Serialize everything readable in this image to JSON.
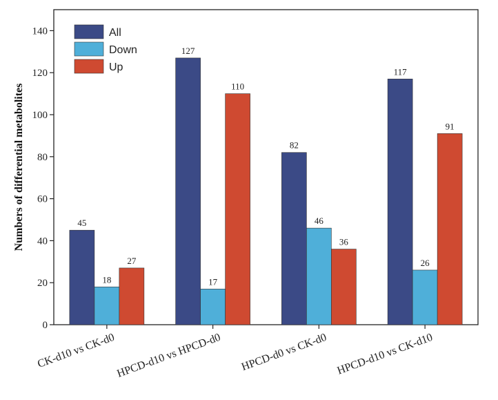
{
  "chart_data": {
    "type": "bar",
    "categories": [
      "CK-d10 vs CK-d0",
      "HPCD-d10 vs HPCD-d0",
      "HPCD-d0 vs CK-d0",
      "HPCD-d10 vs CK-d10"
    ],
    "series": [
      {
        "name": "All",
        "values": [
          45,
          127,
          82,
          117
        ],
        "color": "#3b4a86"
      },
      {
        "name": "Down",
        "values": [
          18,
          17,
          46,
          26
        ],
        "color": "#4fafd9"
      },
      {
        "name": "Up",
        "values": [
          27,
          110,
          36,
          91
        ],
        "color": "#cf4a31"
      }
    ],
    "ylabel": "Numbers of differential metabolites",
    "xlabel": "",
    "ylim": [
      0,
      150
    ],
    "yticks": [
      0,
      20,
      40,
      60,
      80,
      100,
      120,
      140
    ],
    "legend_position": "top-left",
    "grid": false
  }
}
